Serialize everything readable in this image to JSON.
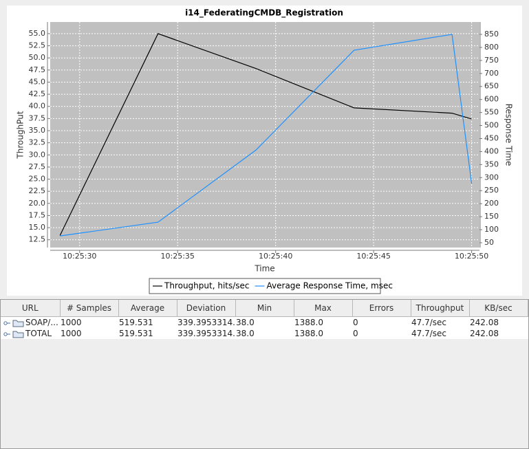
{
  "chart_data": {
    "type": "line",
    "title": "i14_FederatingCMDB_Registration",
    "x_label": "Time",
    "y_label": "ThroughPut",
    "y2_label": "Response Time",
    "x": [
      "10:25:29.0",
      "10:25:34.0",
      "10:25:39.0",
      "10:25:44.0",
      "10:25:49.0",
      "10:25:50.0"
    ],
    "xlim": [
      "10:25:28.5",
      "10:25:50.4"
    ],
    "xticks": [
      "10:25:30",
      "10:25:35",
      "10:25:40",
      "10:25:45",
      "10:25:50"
    ],
    "ylim": [
      10.9,
      57.4
    ],
    "yticks": [
      12.5,
      {
        "value": 15,
        "label": "15.0"
      },
      17.5,
      {
        "value": 20,
        "label": "20.0"
      },
      22.5,
      {
        "value": 25,
        "label": "25.0"
      },
      27.5,
      {
        "value": 30,
        "label": "30.0"
      },
      32.5,
      {
        "value": 35,
        "label": "35.0"
      },
      37.5,
      {
        "value": 40,
        "label": "40.0"
      },
      42.5,
      {
        "value": 45,
        "label": "45.0"
      },
      47.5,
      {
        "value": 50,
        "label": "50.0"
      },
      52.5,
      {
        "value": 55,
        "label": "55.0"
      }
    ],
    "y2lim": [
      31.5,
      897.5
    ],
    "y2ticks": [
      50,
      100,
      150,
      200,
      250,
      300,
      350,
      400,
      450,
      500,
      550,
      600,
      650,
      700,
      750,
      800,
      850
    ],
    "grid": true,
    "legend": "bottom",
    "series": [
      {
        "name": "Throughput, hits/sec",
        "color": "#000000",
        "values": [
          13.4,
          55.0,
          47.8,
          39.7,
          38.6,
          37.4
        ]
      },
      {
        "name": "Average Response Time, msec",
        "color": "#1e90ff",
        "axis": "y2",
        "values": [
          76,
          129,
          406,
          789,
          850,
          277
        ]
      }
    ]
  },
  "table": {
    "columns": [
      "URL",
      "# Samples",
      "Average",
      "Deviation",
      "Min",
      "Max",
      "Errors",
      "Throughput",
      "KB/sec"
    ],
    "rows": [
      [
        "SOAP/...",
        "1000",
        "519.531",
        "339.3953314...",
        "38.0",
        "1388.0",
        "0",
        "47.7/sec",
        "242.08"
      ],
      [
        "TOTAL",
        "1000",
        "519.531",
        "339.3953314...",
        "38.0",
        "1388.0",
        "0",
        "47.7/sec",
        "242.08"
      ]
    ]
  }
}
